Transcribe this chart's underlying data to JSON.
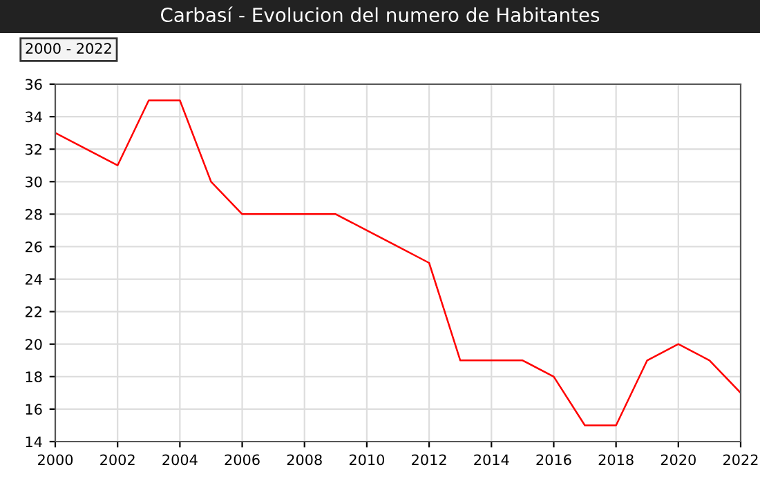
{
  "chart_data": {
    "type": "line",
    "title": "Carbasí - Evolucion del numero de Habitantes",
    "annotations": [
      "2000 - 2022"
    ],
    "x": [
      2000,
      2001,
      2002,
      2003,
      2004,
      2005,
      2006,
      2007,
      2008,
      2009,
      2010,
      2011,
      2012,
      2013,
      2014,
      2015,
      2016,
      2017,
      2018,
      2019,
      2020,
      2021,
      2022
    ],
    "series": [
      {
        "color": "#ff0000",
        "values": [
          33,
          32,
          31,
          35,
          35,
          30,
          28,
          28,
          28,
          28,
          27,
          26,
          25,
          19,
          19,
          19,
          18,
          15,
          15,
          19,
          20,
          19,
          17
        ]
      }
    ],
    "xlim": [
      2000,
      2022
    ],
    "xticks": [
      2000,
      2002,
      2004,
      2006,
      2008,
      2010,
      2012,
      2014,
      2016,
      2018,
      2020,
      2022
    ],
    "ylim": [
      14,
      36
    ],
    "yticks": [
      14,
      16,
      18,
      20,
      22,
      24,
      26,
      28,
      30,
      32,
      34,
      36
    ],
    "grid": true,
    "legend": false,
    "marker": "none",
    "line_style": "solid"
  }
}
